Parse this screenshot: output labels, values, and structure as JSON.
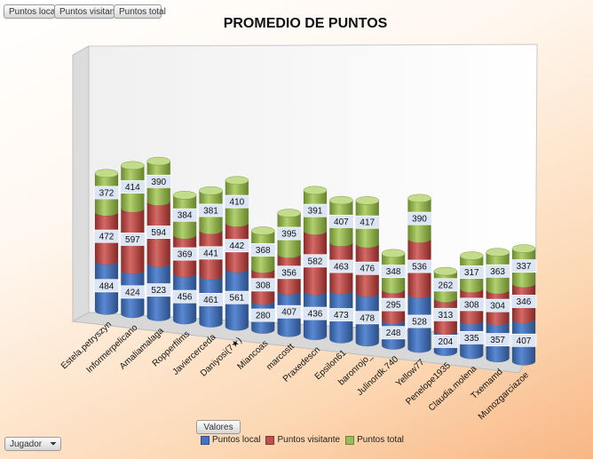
{
  "header": {
    "field_buttons": [
      "Puntos local",
      "Puntos visitante",
      "Puntos total"
    ]
  },
  "footer": {
    "values_button": "Valores",
    "row_field_button": "Jugador",
    "filter_icon": "funnel-icon"
  },
  "colors": {
    "local": "#4472C4",
    "visitante": "#C0504D",
    "total": "#9BBB59"
  },
  "chart_data": {
    "type": "bar",
    "stacked": true,
    "title": "PROMEDIO DE PUNTOS",
    "xlabel": "",
    "ylabel": "",
    "categories": [
      "Estela.petryszyn",
      "Informerpelicano",
      "Amaliamalaga",
      "Ropperfilms",
      "Javiercerceda",
      "Daniyosi(7★)",
      "Miancoas",
      "marcostt",
      "Praxedescn",
      "Epsilon61",
      "baronrojo_",
      "Julinordk.740",
      "Yellow77",
      "Penelope1935",
      "Claudia.molena",
      "Txemamd",
      "Munozgarciazoe"
    ],
    "series": [
      {
        "name": "Puntos local",
        "values": [
          484,
          424,
          523,
          456,
          461,
          561,
          280,
          407,
          436,
          473,
          478,
          248,
          528,
          204,
          335,
          357,
          407
        ]
      },
      {
        "name": "Puntos visitante",
        "values": [
          472,
          597,
          594,
          369,
          441,
          442,
          308,
          356,
          582,
          463,
          476,
          295,
          536,
          313,
          308,
          304,
          346
        ]
      },
      {
        "name": "Puntos total",
        "values": [
          372,
          414,
          390,
          384,
          381,
          410,
          368,
          395,
          391,
          407,
          417,
          348,
          390,
          262,
          317,
          363,
          337
        ]
      }
    ],
    "legend": "bottom"
  }
}
